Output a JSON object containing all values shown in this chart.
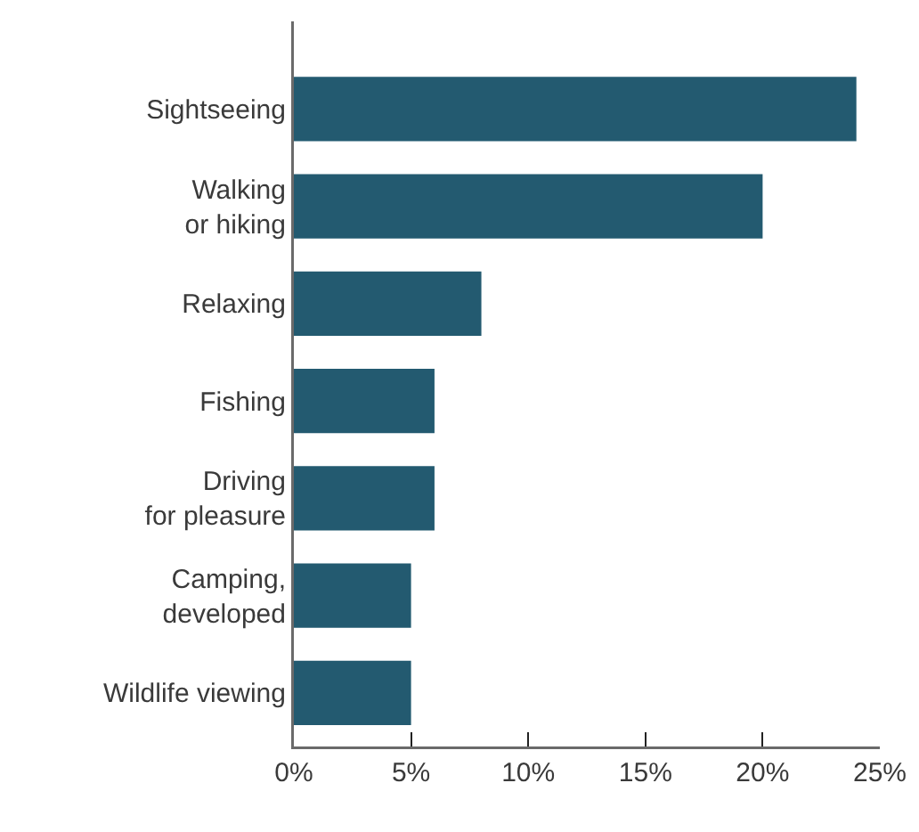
{
  "chart_data": {
    "type": "bar",
    "orientation": "horizontal",
    "categories": [
      "Sightseeing",
      "Walking\nor hiking",
      "Relaxing",
      "Fishing",
      "Driving\nfor pleasure",
      "Camping,\ndeveloped",
      "Wildlife viewing"
    ],
    "values": [
      24,
      20,
      8,
      6,
      6,
      5,
      5
    ],
    "color": "#235a70",
    "xlim": [
      0,
      25
    ],
    "xticks": [
      {
        "value": 0,
        "label": "0%"
      },
      {
        "value": 5,
        "label": "5%"
      },
      {
        "value": 10,
        "label": "10%"
      },
      {
        "value": 15,
        "label": "15%"
      },
      {
        "value": 20,
        "label": "20%"
      },
      {
        "value": 25,
        "label": "25%"
      }
    ],
    "data_labels": false
  }
}
